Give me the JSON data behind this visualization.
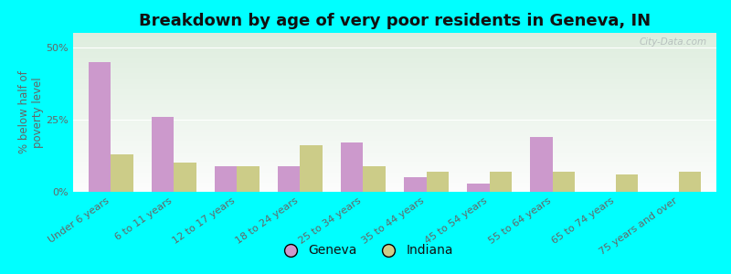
{
  "title": "Breakdown by age of very poor residents in Geneva, IN",
  "ylabel": "% below half of\npoverty level",
  "categories": [
    "Under 6 years",
    "6 to 11 years",
    "12 to 17 years",
    "18 to 24 years",
    "25 to 34 years",
    "35 to 44 years",
    "45 to 54 years",
    "55 to 64 years",
    "65 to 74 years",
    "75 years and over"
  ],
  "geneva_values": [
    45.0,
    26.0,
    9.0,
    9.0,
    17.0,
    5.0,
    3.0,
    19.0,
    0.0,
    0.0
  ],
  "indiana_values": [
    13.0,
    10.0,
    9.0,
    16.0,
    9.0,
    7.0,
    7.0,
    7.0,
    6.0,
    7.0
  ],
  "geneva_color": "#cc99cc",
  "indiana_color": "#cccc88",
  "outer_bg": "#00ffff",
  "ylim": [
    0,
    55
  ],
  "yticks": [
    0,
    25,
    50
  ],
  "ytick_labels": [
    "0%",
    "25%",
    "50%"
  ],
  "bar_width": 0.35,
  "title_fontsize": 13,
  "label_fontsize": 8.5,
  "tick_fontsize": 8,
  "legend_labels": [
    "Geneva",
    "Indiana"
  ],
  "watermark": "City-Data.com"
}
